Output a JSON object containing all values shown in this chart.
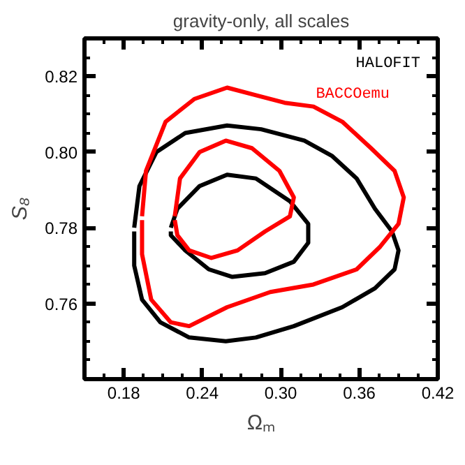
{
  "chart_data": {
    "type": "line",
    "title": "gravity-only, all scales",
    "xlabel": "Ωₘ",
    "ylabel": "S₈",
    "xlim": [
      0.15,
      0.42
    ],
    "ylim": [
      0.74,
      0.83
    ],
    "xticks": [
      {
        "value": 0.18,
        "label": "0.18"
      },
      {
        "value": 0.24,
        "label": "0.24"
      },
      {
        "value": 0.3,
        "label": "0.30"
      },
      {
        "value": 0.36,
        "label": "0.36"
      },
      {
        "value": 0.42,
        "label": "0.42"
      },
      {
        "value": 0.165,
        "label": null
      },
      {
        "value": 0.195,
        "label": null
      },
      {
        "value": 0.21,
        "label": null
      },
      {
        "value": 0.225,
        "label": null
      },
      {
        "value": 0.255,
        "label": null
      },
      {
        "value": 0.27,
        "label": null
      },
      {
        "value": 0.285,
        "label": null
      },
      {
        "value": 0.315,
        "label": null
      },
      {
        "value": 0.33,
        "label": null
      },
      {
        "value": 0.345,
        "label": null
      },
      {
        "value": 0.375,
        "label": null
      },
      {
        "value": 0.39,
        "label": null
      },
      {
        "value": 0.405,
        "label": null
      }
    ],
    "yticks": [
      {
        "value": 0.76,
        "label": "0.76"
      },
      {
        "value": 0.78,
        "label": "0.78"
      },
      {
        "value": 0.8,
        "label": "0.80"
      },
      {
        "value": 0.82,
        "label": "0.82"
      },
      {
        "value": 0.745,
        "label": null
      },
      {
        "value": 0.75,
        "label": null
      },
      {
        "value": 0.755,
        "label": null
      },
      {
        "value": 0.765,
        "label": null
      },
      {
        "value": 0.77,
        "label": null
      },
      {
        "value": 0.775,
        "label": null
      },
      {
        "value": 0.785,
        "label": null
      },
      {
        "value": 0.79,
        "label": null
      },
      {
        "value": 0.795,
        "label": null
      },
      {
        "value": 0.805,
        "label": null
      },
      {
        "value": 0.81,
        "label": null
      },
      {
        "value": 0.815,
        "label": null
      },
      {
        "value": 0.825,
        "label": null
      }
    ],
    "grid": false,
    "legend": "top right",
    "marker": "none",
    "line_style": "solid",
    "series": [
      {
        "name": "HALOFIT",
        "color": "#000000",
        "x": [
          0.188,
          0.192,
          0.205,
          0.227,
          0.259,
          0.285,
          0.318,
          0.339,
          0.358,
          0.372,
          0.385,
          0.39,
          0.387,
          0.372,
          0.347,
          0.31,
          0.281,
          0.258,
          0.23,
          0.208,
          0.194,
          0.188,
          0.188
        ],
        "values": [
          0.78,
          0.791,
          0.8,
          0.805,
          0.807,
          0.806,
          0.803,
          0.799,
          0.793,
          0.785,
          0.779,
          0.774,
          0.769,
          0.764,
          0.759,
          0.754,
          0.751,
          0.75,
          0.751,
          0.755,
          0.761,
          0.77,
          0.779
        ]
      },
      {
        "color": "#000000",
        "x": [
          0.216,
          0.221,
          0.238,
          0.259,
          0.281,
          0.307,
          0.321,
          0.321,
          0.31,
          0.288,
          0.263,
          0.245,
          0.227,
          0.216,
          0.216
        ],
        "values": [
          0.78,
          0.785,
          0.791,
          0.794,
          0.793,
          0.787,
          0.781,
          0.776,
          0.771,
          0.768,
          0.767,
          0.769,
          0.774,
          0.778,
          0.779
        ]
      },
      {
        "name": "BACCOemu",
        "color": "#ff0000",
        "x": [
          0.194,
          0.197,
          0.212,
          0.234,
          0.259,
          0.281,
          0.303,
          0.325,
          0.347,
          0.369,
          0.387,
          0.394,
          0.39,
          0.376,
          0.358,
          0.325,
          0.292,
          0.259,
          0.23,
          0.216,
          0.201,
          0.194,
          0.194
        ],
        "values": [
          0.783,
          0.795,
          0.808,
          0.814,
          0.817,
          0.815,
          0.813,
          0.812,
          0.808,
          0.801,
          0.795,
          0.788,
          0.781,
          0.775,
          0.769,
          0.765,
          0.763,
          0.759,
          0.754,
          0.755,
          0.761,
          0.773,
          0.782
        ]
      },
      {
        "color": "#ff0000",
        "x": [
          0.219,
          0.223,
          0.238,
          0.258,
          0.278,
          0.299,
          0.31,
          0.307,
          0.288,
          0.267,
          0.247,
          0.23,
          0.221,
          0.219
        ],
        "values": [
          0.783,
          0.793,
          0.8,
          0.803,
          0.801,
          0.795,
          0.788,
          0.783,
          0.779,
          0.774,
          0.772,
          0.774,
          0.778,
          0.782
        ]
      }
    ]
  }
}
